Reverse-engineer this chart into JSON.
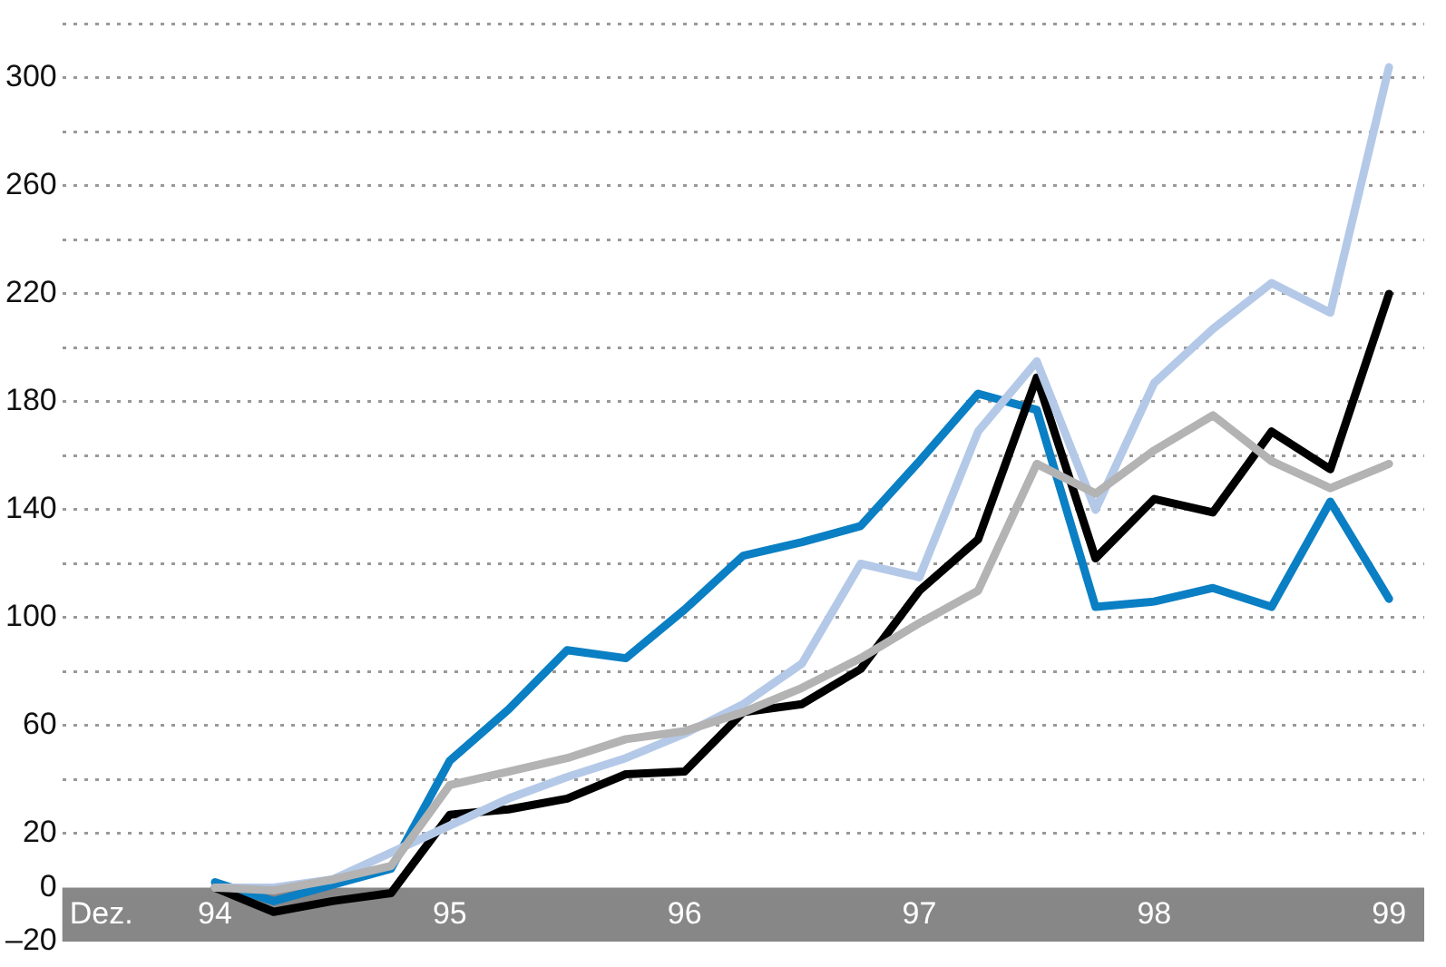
{
  "chart_data": {
    "type": "line",
    "xlabel": "Dez.",
    "x": [
      94,
      94.25,
      94.5,
      94.75,
      95,
      95.25,
      95.5,
      95.75,
      96,
      96.25,
      96.5,
      96.75,
      97,
      97.25,
      97.5,
      97.75,
      98,
      98.25,
      98.5,
      98.75,
      99
    ],
    "series": [
      {
        "color": "#b3b3b3",
        "values": [
          0,
          -1,
          3,
          8,
          38,
          43,
          48,
          55,
          58,
          65,
          74,
          85,
          98,
          110,
          157,
          146,
          162,
          175,
          158,
          148,
          157
        ]
      },
      {
        "color": "#b4c9e8",
        "values": [
          0,
          0,
          3,
          13,
          23,
          33,
          41,
          48,
          57,
          68,
          83,
          120,
          115,
          169,
          195,
          140,
          187,
          207,
          224,
          213,
          304
        ]
      },
      {
        "color": "#000000",
        "values": [
          0,
          -9,
          -5,
          -2,
          27,
          29,
          33,
          42,
          43,
          65,
          68,
          81,
          110,
          129,
          189,
          122,
          144,
          139,
          169,
          155,
          220
        ]
      },
      {
        "color": "#0a7fc4",
        "values": [
          2,
          -5,
          1,
          7,
          47,
          66,
          88,
          85,
          103,
          123,
          128,
          134,
          158,
          183,
          177,
          104,
          106,
          111,
          104,
          143,
          107
        ]
      }
    ],
    "xlim": [
      93.35,
      99.15
    ],
    "xticks": [
      {
        "value": 94,
        "label": "94"
      },
      {
        "value": 95,
        "label": "95"
      },
      {
        "value": 96,
        "label": "96"
      },
      {
        "value": 97,
        "label": "97"
      },
      {
        "value": 98,
        "label": "98"
      },
      {
        "value": 99,
        "label": "99"
      }
    ],
    "ylim": [
      -20,
      320
    ],
    "yticks": [
      {
        "value": -20,
        "label": "–20"
      },
      0,
      20,
      {
        "value": 40,
        "label": null
      },
      60,
      {
        "value": 80,
        "label": null
      },
      100,
      {
        "value": 120,
        "label": null
      },
      140,
      {
        "value": 160,
        "label": null
      },
      180,
      {
        "value": 200,
        "label": null
      },
      220,
      {
        "value": 240,
        "label": null
      },
      260,
      {
        "value": 280,
        "label": null
      },
      300,
      {
        "value": 320,
        "label": null
      }
    ],
    "bands": [
      {
        "axis": "y",
        "from": -20,
        "to": 0,
        "color": "#878787"
      }
    ],
    "grid": "y",
    "legend": false
  }
}
